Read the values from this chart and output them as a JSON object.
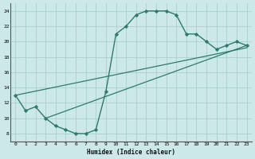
{
  "xlabel": "Humidex (Indice chaleur)",
  "xlim": [
    -0.5,
    23.5
  ],
  "ylim": [
    7,
    25
  ],
  "yticks": [
    8,
    10,
    12,
    14,
    16,
    18,
    20,
    22,
    24
  ],
  "xticks": [
    0,
    1,
    2,
    3,
    4,
    5,
    6,
    7,
    8,
    9,
    10,
    11,
    12,
    13,
    14,
    15,
    16,
    17,
    18,
    19,
    20,
    21,
    22,
    23
  ],
  "bg_color": "#cce8e8",
  "line_color": "#2a7d6e",
  "grid_color": "#aad0d0",
  "curve1_x": [
    0,
    1,
    2,
    3,
    4,
    5,
    6,
    7,
    8,
    9,
    10,
    11,
    12,
    13,
    14,
    15,
    16,
    17,
    18,
    19,
    20,
    21,
    22,
    23
  ],
  "curve1_y": [
    13,
    11,
    11.5,
    10,
    9,
    8.5,
    8,
    8,
    8.5,
    13.5,
    21,
    22,
    23.5,
    24,
    24,
    24,
    23.5,
    21,
    21,
    20,
    19,
    19.5,
    20,
    19.5
  ],
  "line2_x": [
    0,
    23
  ],
  "line2_y": [
    13,
    19.2
  ],
  "line3_x": [
    3,
    23
  ],
  "line3_y": [
    10,
    19.5
  ]
}
